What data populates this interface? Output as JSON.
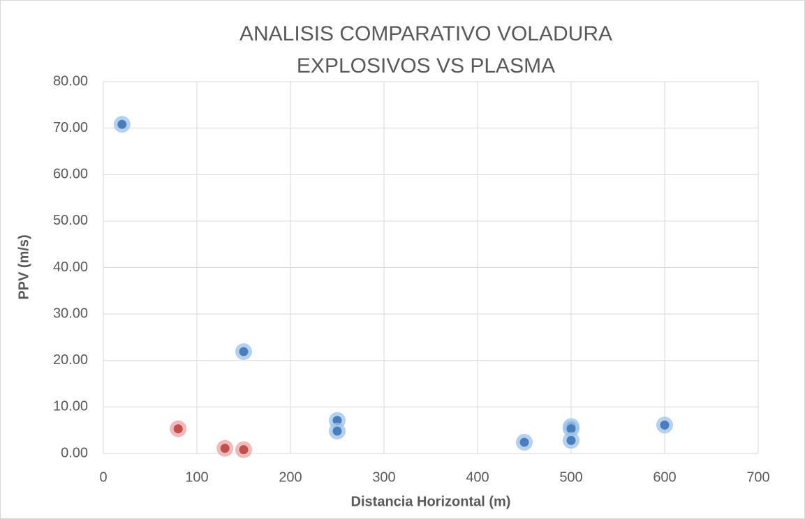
{
  "chart_data": {
    "type": "scatter",
    "title": [
      "ANALISIS COMPARATIVO VOLADURA",
      "EXPLOSIVOS VS PLASMA"
    ],
    "x_label": "Distancia Horizontal (m)",
    "y_label": "PPV (m/s)",
    "series": [
      {
        "color": "#4a7ebb",
        "glow": "#9cc2ea",
        "x": [
          20,
          150,
          250,
          250,
          450,
          500,
          500,
          500,
          600
        ],
        "values": [
          70.8,
          21.9,
          7.1,
          4.8,
          2.4,
          5.8,
          5.3,
          2.8,
          6.1
        ]
      },
      {
        "color": "#c0504d",
        "glow": "#eaa3a1",
        "x": [
          80,
          130,
          150
        ],
        "values": [
          5.3,
          1.1,
          0.8
        ]
      }
    ],
    "xlim": [
      0,
      700
    ],
    "xticks": [
      0,
      100,
      200,
      300,
      400,
      500,
      600,
      700
    ],
    "ylim": [
      0,
      80
    ],
    "yticks": [
      {
        "value": 0,
        "label": "0.00"
      },
      {
        "value": 10,
        "label": "10.00"
      },
      {
        "value": 20,
        "label": "20.00"
      },
      {
        "value": 30,
        "label": "30.00"
      },
      {
        "value": 40,
        "label": "40.00"
      },
      {
        "value": 50,
        "label": "50.00"
      },
      {
        "value": 60,
        "label": "60.00"
      },
      {
        "value": 70,
        "label": "70.00"
      },
      {
        "value": 80,
        "label": "80.00"
      }
    ],
    "grid": true
  }
}
